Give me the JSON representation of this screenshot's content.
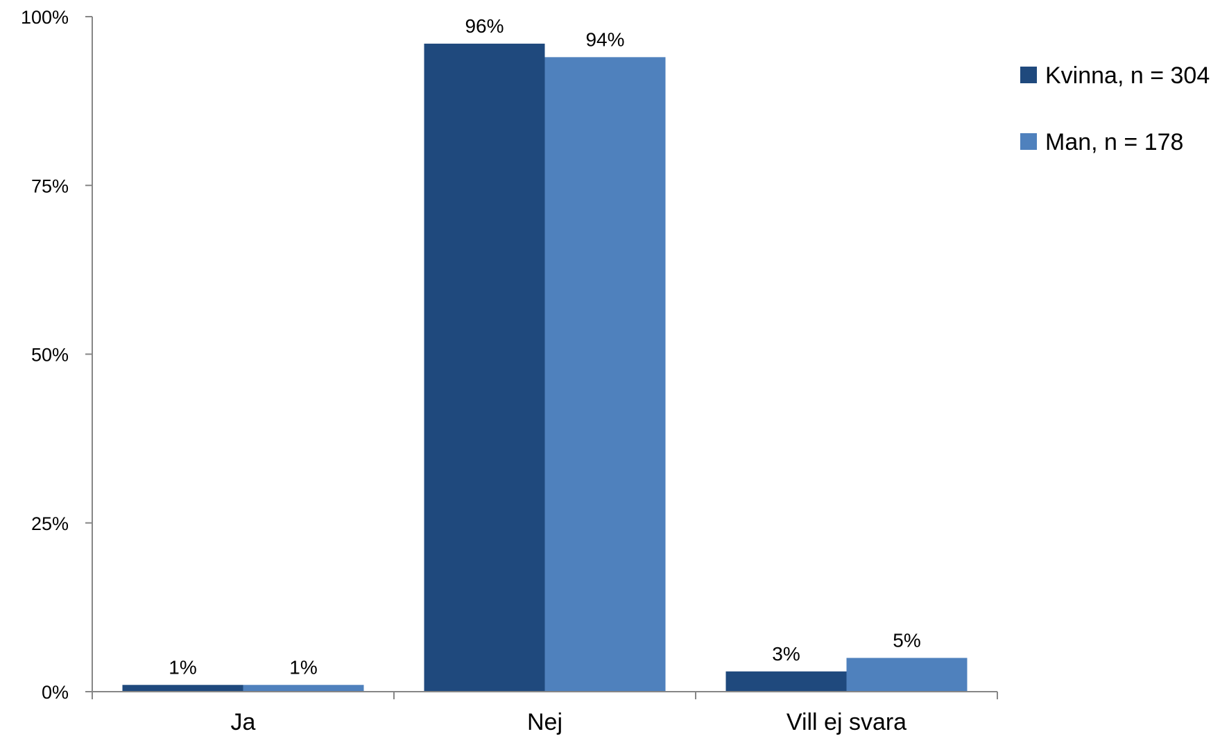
{
  "chart_data": {
    "type": "bar",
    "categories": [
      "Ja",
      "Nej",
      "Vill ej svara"
    ],
    "series": [
      {
        "name": "Kvinna, n = 304",
        "color": "#1f497d",
        "values": [
          1,
          96,
          3
        ],
        "labels": [
          "1%",
          "96%",
          "3%"
        ]
      },
      {
        "name": "Man, n = 178",
        "color": "#4f81bd",
        "values": [
          1,
          94,
          5
        ],
        "labels": [
          "1%",
          "94%",
          "5%"
        ]
      }
    ],
    "ylim": [
      0,
      100
    ],
    "yticks": [
      0,
      25,
      50,
      75,
      100
    ],
    "ytick_labels": [
      "0%",
      "25%",
      "50%",
      "75%",
      "100%"
    ],
    "grid": false,
    "legend_position": "right"
  }
}
